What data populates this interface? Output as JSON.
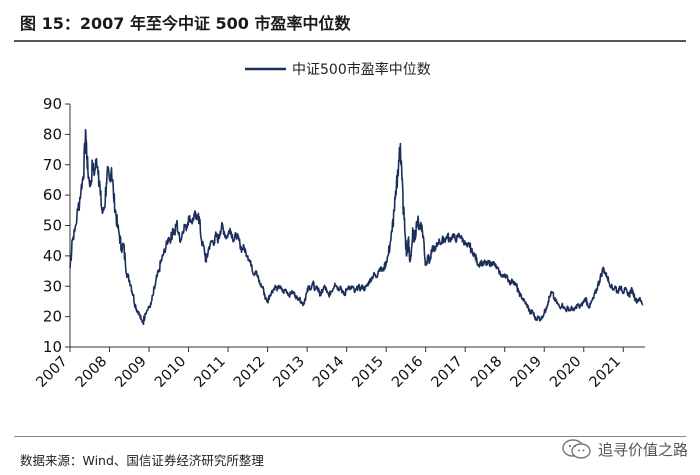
{
  "header": {
    "title": "图 15：2007 年至今中证 500 市盈率中位数"
  },
  "footer": {
    "source": "数据来源：Wind、国信证券经济研究所整理"
  },
  "watermark": {
    "text": "追寻价值之路",
    "icon": "wechat-icon"
  },
  "colors": {
    "line": "#1b2f5a",
    "axis": "#333333",
    "rule": "#555555"
  },
  "chart_data": {
    "type": "line",
    "title": "",
    "xlabel": "",
    "ylabel": "",
    "ylim": [
      10,
      90
    ],
    "yticks": [
      10,
      20,
      30,
      40,
      50,
      60,
      70,
      80,
      90
    ],
    "xlim": [
      2007.0,
      2021.55
    ],
    "xticks": [
      "2007",
      "2008",
      "2009",
      "2010",
      "2011",
      "2012",
      "2013",
      "2014",
      "2015",
      "2016",
      "2017",
      "2018",
      "2019",
      "2020",
      "2021"
    ],
    "grid": false,
    "legend_position": "top-center",
    "series": [
      {
        "name": "中证500市盈率中位数",
        "points": [
          [
            2007.0,
            36
          ],
          [
            2007.05,
            45
          ],
          [
            2007.12,
            48
          ],
          [
            2007.2,
            55
          ],
          [
            2007.28,
            62
          ],
          [
            2007.33,
            66
          ],
          [
            2007.38,
            75
          ],
          [
            2007.4,
            81
          ],
          [
            2007.43,
            72
          ],
          [
            2007.47,
            66
          ],
          [
            2007.52,
            63
          ],
          [
            2007.57,
            70
          ],
          [
            2007.62,
            67
          ],
          [
            2007.67,
            72
          ],
          [
            2007.72,
            68
          ],
          [
            2007.77,
            60
          ],
          [
            2007.82,
            54
          ],
          [
            2007.87,
            56
          ],
          [
            2007.92,
            64
          ],
          [
            2007.96,
            68
          ],
          [
            2008.0,
            65
          ],
          [
            2008.05,
            69
          ],
          [
            2008.1,
            60
          ],
          [
            2008.15,
            55
          ],
          [
            2008.2,
            50
          ],
          [
            2008.25,
            47
          ],
          [
            2008.3,
            42
          ],
          [
            2008.35,
            44
          ],
          [
            2008.4,
            38
          ],
          [
            2008.45,
            34
          ],
          [
            2008.5,
            32
          ],
          [
            2008.55,
            30
          ],
          [
            2008.6,
            27
          ],
          [
            2008.65,
            24
          ],
          [
            2008.7,
            22
          ],
          [
            2008.75,
            21
          ],
          [
            2008.8,
            19
          ],
          [
            2008.85,
            18
          ],
          [
            2008.9,
            21
          ],
          [
            2008.95,
            22
          ],
          [
            2009.0,
            23
          ],
          [
            2009.05,
            24
          ],
          [
            2009.1,
            27
          ],
          [
            2009.15,
            30
          ],
          [
            2009.2,
            33
          ],
          [
            2009.25,
            35
          ],
          [
            2009.3,
            38
          ],
          [
            2009.35,
            40
          ],
          [
            2009.4,
            42
          ],
          [
            2009.45,
            44
          ],
          [
            2009.5,
            46
          ],
          [
            2009.55,
            45
          ],
          [
            2009.6,
            49
          ],
          [
            2009.65,
            47
          ],
          [
            2009.7,
            51
          ],
          [
            2009.75,
            47
          ],
          [
            2009.8,
            45
          ],
          [
            2009.85,
            48
          ],
          [
            2009.9,
            50
          ],
          [
            2009.95,
            49
          ],
          [
            2010.0,
            53
          ],
          [
            2010.05,
            52
          ],
          [
            2010.1,
            51
          ],
          [
            2010.15,
            54
          ],
          [
            2010.2,
            52
          ],
          [
            2010.25,
            54
          ],
          [
            2010.3,
            48
          ],
          [
            2010.35,
            44
          ],
          [
            2010.4,
            42
          ],
          [
            2010.45,
            38
          ],
          [
            2010.5,
            42
          ],
          [
            2010.55,
            44
          ],
          [
            2010.6,
            45
          ],
          [
            2010.65,
            44
          ],
          [
            2010.7,
            47
          ],
          [
            2010.75,
            45
          ],
          [
            2010.8,
            48
          ],
          [
            2010.85,
            50
          ],
          [
            2010.9,
            48
          ],
          [
            2010.95,
            46
          ],
          [
            2011.0,
            47
          ],
          [
            2011.05,
            49
          ],
          [
            2011.1,
            47
          ],
          [
            2011.15,
            45
          ],
          [
            2011.2,
            47
          ],
          [
            2011.25,
            46
          ],
          [
            2011.3,
            44
          ],
          [
            2011.35,
            42
          ],
          [
            2011.4,
            43
          ],
          [
            2011.45,
            41
          ],
          [
            2011.5,
            40
          ],
          [
            2011.55,
            38
          ],
          [
            2011.6,
            37
          ],
          [
            2011.65,
            34
          ],
          [
            2011.7,
            35
          ],
          [
            2011.75,
            33
          ],
          [
            2011.8,
            31
          ],
          [
            2011.85,
            30
          ],
          [
            2011.9,
            29
          ],
          [
            2011.95,
            26
          ],
          [
            2012.0,
            25
          ],
          [
            2012.05,
            27
          ],
          [
            2012.1,
            28
          ],
          [
            2012.15,
            29
          ],
          [
            2012.2,
            30
          ],
          [
            2012.25,
            29
          ],
          [
            2012.3,
            30
          ],
          [
            2012.35,
            29
          ],
          [
            2012.4,
            28
          ],
          [
            2012.45,
            29
          ],
          [
            2012.5,
            28
          ],
          [
            2012.55,
            27
          ],
          [
            2012.6,
            28
          ],
          [
            2012.65,
            28
          ],
          [
            2012.7,
            27
          ],
          [
            2012.75,
            26
          ],
          [
            2012.8,
            26
          ],
          [
            2012.85,
            25
          ],
          [
            2012.9,
            24
          ],
          [
            2012.95,
            26
          ],
          [
            2013.0,
            28
          ],
          [
            2013.05,
            30
          ],
          [
            2013.1,
            29
          ],
          [
            2013.15,
            31
          ],
          [
            2013.2,
            29
          ],
          [
            2013.25,
            30
          ],
          [
            2013.3,
            28
          ],
          [
            2013.35,
            27
          ],
          [
            2013.4,
            29
          ],
          [
            2013.45,
            30
          ],
          [
            2013.5,
            28
          ],
          [
            2013.55,
            27
          ],
          [
            2013.6,
            28
          ],
          [
            2013.65,
            29
          ],
          [
            2013.7,
            31
          ],
          [
            2013.75,
            30
          ],
          [
            2013.8,
            29
          ],
          [
            2013.85,
            30
          ],
          [
            2013.9,
            28
          ],
          [
            2013.95,
            27
          ],
          [
            2014.0,
            29
          ],
          [
            2014.05,
            30
          ],
          [
            2014.1,
            29
          ],
          [
            2014.15,
            30
          ],
          [
            2014.2,
            28
          ],
          [
            2014.25,
            29
          ],
          [
            2014.3,
            30
          ],
          [
            2014.35,
            29
          ],
          [
            2014.4,
            30
          ],
          [
            2014.45,
            29
          ],
          [
            2014.5,
            30
          ],
          [
            2014.55,
            31
          ],
          [
            2014.6,
            32
          ],
          [
            2014.65,
            33
          ],
          [
            2014.7,
            34
          ],
          [
            2014.75,
            33
          ],
          [
            2014.8,
            35
          ],
          [
            2014.85,
            36
          ],
          [
            2014.9,
            35
          ],
          [
            2014.95,
            36
          ],
          [
            2015.0,
            38
          ],
          [
            2015.05,
            40
          ],
          [
            2015.1,
            44
          ],
          [
            2015.15,
            48
          ],
          [
            2015.2,
            55
          ],
          [
            2015.25,
            60
          ],
          [
            2015.3,
            68
          ],
          [
            2015.33,
            73
          ],
          [
            2015.36,
            77
          ],
          [
            2015.4,
            65
          ],
          [
            2015.44,
            55
          ],
          [
            2015.48,
            47
          ],
          [
            2015.52,
            40
          ],
          [
            2015.56,
            45
          ],
          [
            2015.6,
            38
          ],
          [
            2015.64,
            42
          ],
          [
            2015.68,
            48
          ],
          [
            2015.72,
            45
          ],
          [
            2015.76,
            50
          ],
          [
            2015.8,
            52
          ],
          [
            2015.84,
            49
          ],
          [
            2015.88,
            51
          ],
          [
            2015.92,
            48
          ],
          [
            2015.96,
            44
          ],
          [
            2016.0,
            37
          ],
          [
            2016.05,
            40
          ],
          [
            2016.1,
            38
          ],
          [
            2016.15,
            41
          ],
          [
            2016.2,
            43
          ],
          [
            2016.25,
            42
          ],
          [
            2016.3,
            44
          ],
          [
            2016.35,
            45
          ],
          [
            2016.4,
            44
          ],
          [
            2016.45,
            46
          ],
          [
            2016.5,
            45
          ],
          [
            2016.55,
            47
          ],
          [
            2016.6,
            45
          ],
          [
            2016.65,
            46
          ],
          [
            2016.7,
            47
          ],
          [
            2016.75,
            45
          ],
          [
            2016.8,
            46
          ],
          [
            2016.85,
            47
          ],
          [
            2016.9,
            46
          ],
          [
            2016.95,
            45
          ],
          [
            2017.0,
            44
          ],
          [
            2017.05,
            43
          ],
          [
            2017.1,
            44
          ],
          [
            2017.15,
            42
          ],
          [
            2017.2,
            41
          ],
          [
            2017.25,
            40
          ],
          [
            2017.3,
            38
          ],
          [
            2017.35,
            37
          ],
          [
            2017.4,
            38
          ],
          [
            2017.45,
            37
          ],
          [
            2017.5,
            38
          ],
          [
            2017.55,
            37
          ],
          [
            2017.6,
            38
          ],
          [
            2017.65,
            37
          ],
          [
            2017.7,
            38
          ],
          [
            2017.75,
            37
          ],
          [
            2017.8,
            36
          ],
          [
            2017.85,
            35
          ],
          [
            2017.9,
            34
          ],
          [
            2017.95,
            33
          ],
          [
            2018.0,
            34
          ],
          [
            2018.05,
            33
          ],
          [
            2018.1,
            32
          ],
          [
            2018.15,
            31
          ],
          [
            2018.2,
            32
          ],
          [
            2018.25,
            31
          ],
          [
            2018.3,
            30
          ],
          [
            2018.35,
            28
          ],
          [
            2018.4,
            27
          ],
          [
            2018.45,
            26
          ],
          [
            2018.5,
            25
          ],
          [
            2018.55,
            24
          ],
          [
            2018.6,
            23
          ],
          [
            2018.65,
            21
          ],
          [
            2018.7,
            22
          ],
          [
            2018.75,
            20
          ],
          [
            2018.8,
            19
          ],
          [
            2018.85,
            20
          ],
          [
            2018.9,
            19
          ],
          [
            2018.95,
            20
          ],
          [
            2019.0,
            21
          ],
          [
            2019.05,
            23
          ],
          [
            2019.1,
            25
          ],
          [
            2019.15,
            27
          ],
          [
            2019.2,
            28
          ],
          [
            2019.25,
            26
          ],
          [
            2019.3,
            25
          ],
          [
            2019.35,
            24
          ],
          [
            2019.4,
            23
          ],
          [
            2019.45,
            24
          ],
          [
            2019.5,
            23
          ],
          [
            2019.55,
            22
          ],
          [
            2019.6,
            23
          ],
          [
            2019.65,
            22
          ],
          [
            2019.7,
            23
          ],
          [
            2019.75,
            22
          ],
          [
            2019.8,
            23
          ],
          [
            2019.85,
            24
          ],
          [
            2019.9,
            23
          ],
          [
            2019.95,
            24
          ],
          [
            2020.0,
            25
          ],
          [
            2020.05,
            26
          ],
          [
            2020.1,
            24
          ],
          [
            2020.15,
            23
          ],
          [
            2020.2,
            25
          ],
          [
            2020.25,
            26
          ],
          [
            2020.3,
            28
          ],
          [
            2020.35,
            30
          ],
          [
            2020.4,
            32
          ],
          [
            2020.45,
            34
          ],
          [
            2020.5,
            36
          ],
          [
            2020.55,
            34
          ],
          [
            2020.6,
            33
          ],
          [
            2020.65,
            31
          ],
          [
            2020.7,
            30
          ],
          [
            2020.75,
            29
          ],
          [
            2020.8,
            30
          ],
          [
            2020.85,
            28
          ],
          [
            2020.9,
            29
          ],
          [
            2020.95,
            30
          ],
          [
            2021.0,
            28
          ],
          [
            2021.05,
            29
          ],
          [
            2021.1,
            28
          ],
          [
            2021.15,
            27
          ],
          [
            2021.2,
            29
          ],
          [
            2021.25,
            28
          ],
          [
            2021.3,
            26
          ],
          [
            2021.35,
            25
          ],
          [
            2021.4,
            26
          ],
          [
            2021.45,
            25
          ],
          [
            2021.5,
            24
          ]
        ]
      }
    ]
  }
}
